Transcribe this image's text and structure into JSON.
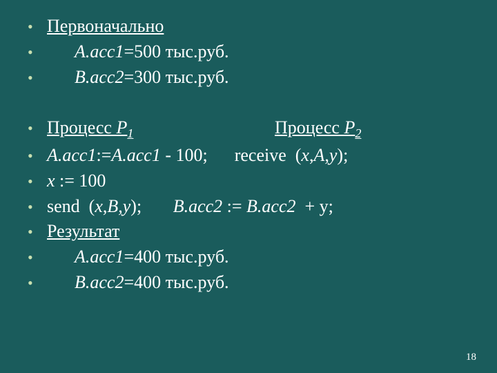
{
  "background_color": "#1a5c5c",
  "text_color": "#ffffff",
  "bullet_color": "#c8dfb0",
  "font_family": "Times New Roman",
  "font_size_pt": 26,
  "lines": {
    "l1": "Первоначально",
    "l2_a": "A.acc1",
    "l2_b": "=500 тыс.руб.",
    "l3_a": "B.acc2",
    "l3_b": "=300 тыс.руб.",
    "l4_a": " Процесс ",
    "l4_b": "Р",
    "l4_sub1": "1",
    "l4_c": "Процесс ",
    "l4_d": "Р",
    "l4_sub2": "2",
    "l5_a": "A.acc1",
    "l5_b": ":=",
    "l5_c": "A.acc1",
    "l5_d": " - 100;      receive  (",
    "l5_e": "x",
    "l5_f": ",",
    "l5_g": "A",
    "l5_h": ",",
    "l5_i": "y",
    "l5_j": ");",
    "l6_a": "x",
    "l6_b": " := 100",
    "l7_a": "send  (",
    "l7_b": "x",
    "l7_c": ",",
    "l7_d": "B,y",
    "l7_e": ");       ",
    "l7_f": "B.acc2",
    "l7_g": " := ",
    "l7_h": "B.acc2 ",
    "l7_i": " + y;",
    "l8": "Результат",
    "l9_a": "A.acc1",
    "l9_b": "=400 тыс.руб.",
    "l10_a": "B.acc2",
    "l10_b": "=400 тыс.руб."
  },
  "page_number": "18"
}
